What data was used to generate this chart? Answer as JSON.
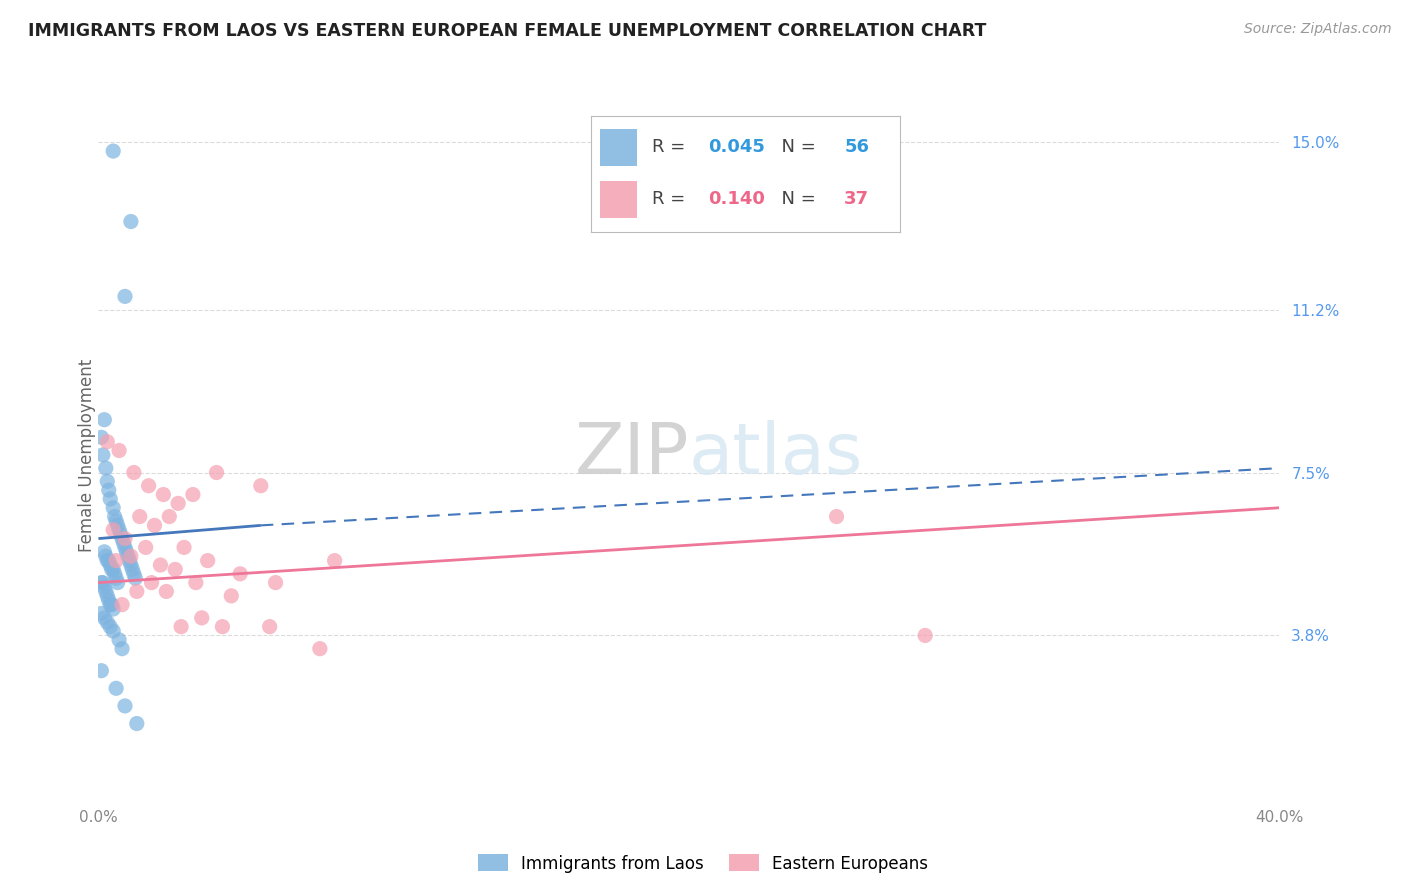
{
  "title": "IMMIGRANTS FROM LAOS VS EASTERN EUROPEAN FEMALE UNEMPLOYMENT CORRELATION CHART",
  "source": "Source: ZipAtlas.com",
  "ylabel": "Female Unemployment",
  "y_ticks": [
    3.8,
    7.5,
    11.2,
    15.0
  ],
  "y_tick_labels": [
    "3.8%",
    "7.5%",
    "11.2%",
    "15.0%"
  ],
  "xlim": [
    0.0,
    40.0
  ],
  "ylim": [
    0.0,
    15.8
  ],
  "legend1_label": "Immigrants from Laos",
  "legend2_label": "Eastern Europeans",
  "R1": "0.045",
  "N1": "56",
  "R2": "0.140",
  "N2": "37",
  "color_blue": "#7EB4E0",
  "color_pink": "#F4A0B0",
  "color_blue_text": "#3399DD",
  "color_pink_text": "#EE6688",
  "color_blue_line": "#4477BB",
  "color_pink_line": "#EE7799",
  "color_right_axis": "#5599EE",
  "color_grid": "#CCCCCC",
  "background_color": "#FFFFFF",
  "watermark_color": "#D8E8F4",
  "watermark_color2": "#E8E8E8",
  "laos_x": [
    0.5,
    1.1,
    0.9,
    0.2,
    0.1,
    0.15,
    0.25,
    0.3,
    0.35,
    0.4,
    0.5,
    0.55,
    0.6,
    0.65,
    0.7,
    0.75,
    0.8,
    0.85,
    0.9,
    0.95,
    1.0,
    1.05,
    1.1,
    1.15,
    1.2,
    1.25,
    0.2,
    0.25,
    0.3,
    0.35,
    0.4,
    0.45,
    0.5,
    0.55,
    0.6,
    0.65,
    0.1,
    0.15,
    0.2,
    0.25,
    0.3,
    0.35,
    0.4,
    0.45,
    0.5,
    0.1,
    0.2,
    0.3,
    0.4,
    0.5,
    0.7,
    0.8,
    0.1,
    0.6,
    0.9,
    1.3
  ],
  "laos_y": [
    14.8,
    13.2,
    11.5,
    8.7,
    8.3,
    7.9,
    7.6,
    7.3,
    7.1,
    6.9,
    6.7,
    6.5,
    6.4,
    6.3,
    6.2,
    6.1,
    6.0,
    5.9,
    5.8,
    5.7,
    5.6,
    5.5,
    5.4,
    5.3,
    5.2,
    5.1,
    5.7,
    5.6,
    5.5,
    5.5,
    5.4,
    5.3,
    5.3,
    5.2,
    5.1,
    5.0,
    5.0,
    5.0,
    4.9,
    4.8,
    4.7,
    4.6,
    4.5,
    4.5,
    4.4,
    4.3,
    4.2,
    4.1,
    4.0,
    3.9,
    3.7,
    3.5,
    3.0,
    2.6,
    2.2,
    1.8
  ],
  "eastern_x": [
    0.3,
    0.7,
    1.2,
    1.7,
    2.2,
    2.7,
    3.2,
    4.0,
    5.5,
    28.0,
    0.5,
    0.9,
    1.4,
    1.9,
    2.4,
    2.9,
    3.7,
    4.8,
    0.6,
    1.1,
    1.6,
    2.1,
    2.6,
    3.3,
    4.5,
    6.0,
    8.0,
    0.8,
    1.3,
    1.8,
    2.3,
    2.8,
    3.5,
    4.2,
    5.8,
    7.5,
    25.0
  ],
  "eastern_y": [
    8.2,
    8.0,
    7.5,
    7.2,
    7.0,
    6.8,
    7.0,
    7.5,
    7.2,
    3.8,
    6.2,
    6.0,
    6.5,
    6.3,
    6.5,
    5.8,
    5.5,
    5.2,
    5.5,
    5.6,
    5.8,
    5.4,
    5.3,
    5.0,
    4.7,
    5.0,
    5.5,
    4.5,
    4.8,
    5.0,
    4.8,
    4.0,
    4.2,
    4.0,
    4.0,
    3.5,
    6.5
  ],
  "blue_line_x0": 0.0,
  "blue_line_x1": 5.5,
  "blue_line_y0": 6.0,
  "blue_line_y1": 6.3,
  "blue_dash_x0": 5.5,
  "blue_dash_x1": 40.0,
  "blue_dash_y0": 6.3,
  "blue_dash_y1": 7.6,
  "pink_line_x0": 0.0,
  "pink_line_x1": 40.0,
  "pink_line_y0": 5.0,
  "pink_line_y1": 6.7
}
